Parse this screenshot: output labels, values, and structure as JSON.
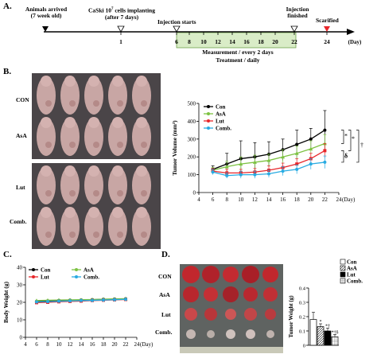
{
  "panelA": {
    "letter": "A.",
    "timeline": {
      "ticks": [
        "1",
        "6",
        "8",
        "10",
        "12",
        "14",
        "16",
        "18",
        "20",
        "22",
        "24"
      ],
      "unit": "(Day)",
      "events": {
        "arrived": "Animals arrived",
        "arrived_sub": "(7 week old)",
        "implant": "CaSki 10",
        "implant_sup": "7",
        "implant_rest": " cells implanting",
        "implant_sub": "(after 7 days)",
        "inj_start": "Injection starts",
        "inj_finish": "Injection",
        "inj_finish_sub": "finished",
        "sacrificed": "Scarified"
      },
      "measurement": "Measurement / every 2 days",
      "treatment": "Treatment / daily"
    }
  },
  "panelB": {
    "letter": "B.",
    "groups": [
      "CON",
      "AsA",
      "Lut",
      "Comb."
    ],
    "chart_data": {
      "type": "line",
      "ylabel": "Tumor Volume (mm³)",
      "xlabel": "(Day)",
      "x": [
        6,
        8,
        10,
        12,
        14,
        16,
        18,
        20,
        22
      ],
      "xticks": [
        4,
        6,
        8,
        10,
        12,
        14,
        16,
        18,
        20,
        22,
        24
      ],
      "yticks": [
        0,
        100,
        200,
        300,
        400,
        500
      ],
      "ylim": [
        0,
        500
      ],
      "xlim": [
        4,
        24
      ],
      "series": [
        {
          "name": "Con",
          "color": "#000000",
          "values": [
            130,
            160,
            190,
            200,
            215,
            240,
            270,
            300,
            350
          ],
          "err": [
            20,
            60,
            100,
            80,
            70,
            60,
            80,
            60,
            110
          ]
        },
        {
          "name": "AsA",
          "color": "#7dc242",
          "values": [
            125,
            145,
            160,
            170,
            180,
            200,
            220,
            245,
            275
          ],
          "err": [
            15,
            30,
            40,
            40,
            35,
            40,
            40,
            45,
            50
          ]
        },
        {
          "name": "Lut",
          "color": "#e8262a",
          "values": [
            120,
            110,
            110,
            115,
            125,
            140,
            160,
            190,
            235
          ],
          "err": [
            15,
            20,
            20,
            20,
            25,
            25,
            30,
            30,
            40
          ]
        },
        {
          "name": "Comb.",
          "color": "#29abe2",
          "values": [
            115,
            95,
            100,
            100,
            105,
            120,
            130,
            160,
            170
          ],
          "err": [
            15,
            15,
            20,
            20,
            20,
            25,
            25,
            30,
            35
          ]
        }
      ],
      "annotations": [
        "*",
        "*",
        "δ",
        "†"
      ]
    }
  },
  "panelC": {
    "letter": "C.",
    "chart_data": {
      "type": "line",
      "ylabel": "Body Weight (g)",
      "xlabel": "(Day)",
      "x": [
        6,
        8,
        10,
        12,
        14,
        16,
        18,
        20,
        22
      ],
      "xticks": [
        4,
        6,
        8,
        10,
        12,
        14,
        16,
        18,
        20,
        22,
        24
      ],
      "yticks": [
        0,
        10,
        20,
        30,
        40
      ],
      "ylim": [
        0,
        40
      ],
      "xlim": [
        4,
        24
      ],
      "series": [
        {
          "name": "Con",
          "color": "#000000",
          "values": [
            20.5,
            20.8,
            21,
            21.2,
            21.3,
            21.5,
            21.7,
            21.8,
            22
          ]
        },
        {
          "name": "AsA",
          "color": "#7dc242",
          "values": [
            21,
            21.2,
            21.3,
            21.4,
            21.5,
            21.6,
            21.8,
            22,
            22.1
          ]
        },
        {
          "name": "Lut",
          "color": "#e8262a",
          "values": [
            19.8,
            20,
            20.3,
            20.5,
            20.7,
            21,
            21.2,
            21.4,
            21.6
          ]
        },
        {
          "name": "Comb.",
          "color": "#29abe2",
          "values": [
            20.2,
            20.4,
            20.6,
            20.8,
            21,
            21.1,
            21.3,
            21.5,
            21.7
          ]
        }
      ]
    }
  },
  "panelD": {
    "letter": "D.",
    "groups": [
      "CON",
      "AsA",
      "Lut",
      "Comb."
    ],
    "chart_data": {
      "type": "bar",
      "ylabel": "Tumor Weight (g)",
      "categories": [
        "Con",
        "AsA",
        "Lut",
        "Comb."
      ],
      "values": [
        0.18,
        0.13,
        0.1,
        0.06
      ],
      "err": [
        0.05,
        0.02,
        0.02,
        0.015
      ],
      "yticks": [
        0,
        0.1,
        0.2,
        0.3,
        0.4
      ],
      "ylim": [
        0,
        0.4
      ],
      "marks": [
        "",
        "*",
        "*†",
        "*†δ"
      ],
      "legend": [
        "Con",
        "AsA",
        "Lut",
        "Comb."
      ]
    }
  }
}
